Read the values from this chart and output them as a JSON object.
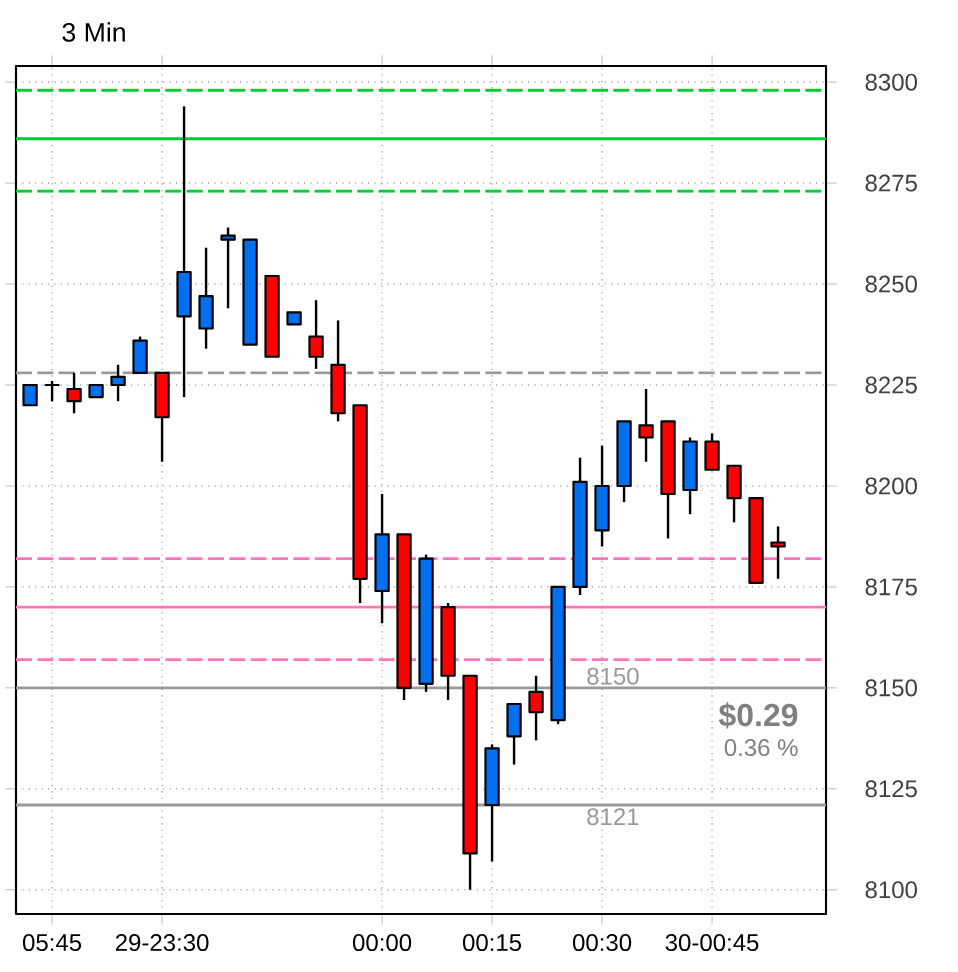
{
  "chart_data": {
    "type": "candlestick",
    "title": "3 Min",
    "categories": [
      null,
      "05:45",
      null,
      null,
      null,
      null,
      "29-23:30",
      null,
      null,
      null,
      null,
      null,
      null,
      null,
      null,
      null,
      "00:00",
      null,
      null,
      null,
      null,
      "00:15",
      null,
      null,
      null,
      null,
      "00:30",
      null,
      null,
      null,
      null,
      "30-00:45",
      null,
      null,
      null
    ],
    "ohlc": [
      [
        8220,
        8225,
        8220,
        8225
      ],
      [
        8225,
        8226,
        8221,
        8225
      ],
      [
        8224,
        8228,
        8218,
        8221
      ],
      [
        8222,
        8225,
        8222,
        8225
      ],
      [
        8225,
        8230,
        8221,
        8227
      ],
      [
        8228,
        8237,
        8228,
        8236
      ],
      [
        8228,
        8228,
        8206,
        8217
      ],
      [
        8242,
        8294,
        8222,
        8253
      ],
      [
        8239,
        8259,
        8234,
        8247
      ],
      [
        8261,
        8264,
        8244,
        8262
      ],
      [
        8235,
        8261,
        8235,
        8261
      ],
      [
        8252,
        8252,
        8232,
        8232
      ],
      [
        8240,
        8243,
        8240,
        8243
      ],
      [
        8237,
        8246,
        8229,
        8232
      ],
      [
        8230,
        8241,
        8216,
        8218
      ],
      [
        8220,
        8220,
        8171,
        8177
      ],
      [
        8174,
        8198,
        8166,
        8188
      ],
      [
        8188,
        8188,
        8147,
        8150
      ],
      [
        8151,
        8183,
        8149,
        8182
      ],
      [
        8170,
        8171,
        8147,
        8153
      ],
      [
        8153,
        8153,
        8100,
        8109
      ],
      [
        8121,
        8136,
        8107,
        8135
      ],
      [
        8138,
        8146,
        8131,
        8146
      ],
      [
        8149,
        8153,
        8137,
        8144
      ],
      [
        8142,
        8175,
        8141,
        8175
      ],
      [
        8175,
        8207,
        8173,
        8201
      ],
      [
        8189,
        8210,
        8185,
        8200
      ],
      [
        8200,
        8216,
        8196,
        8216
      ],
      [
        8215,
        8224,
        8206,
        8212
      ],
      [
        8216,
        8216,
        8187,
        8198
      ],
      [
        8199,
        8212,
        8193,
        8211
      ],
      [
        8211,
        8213,
        8204,
        8204
      ],
      [
        8205,
        8205,
        8191,
        8197
      ],
      [
        8197,
        8197,
        8176,
        8176
      ],
      [
        8186,
        8190,
        8177,
        8185
      ]
    ],
    "colors": [
      "#0070f0",
      "#000000",
      "#ff0000",
      "#0070f0",
      "#0070f0",
      "#0070f0",
      "#ff0000",
      "#0070f0",
      "#0070f0",
      "#0070f0",
      "#0070f0",
      "#ff0000",
      "#0070f0",
      "#ff0000",
      "#ff0000",
      "#ff0000",
      "#0070f0",
      "#ff0000",
      "#0070f0",
      "#ff0000",
      "#ff0000",
      "#0070f0",
      "#0070f0",
      "#ff0000",
      "#0070f0",
      "#0070f0",
      "#0070f0",
      "#0070f0",
      "#ff0000",
      "#ff0000",
      "#0070f0",
      "#ff0000",
      "#ff0000",
      "#ff0000",
      "#ff0000"
    ],
    "ylim": [
      8094,
      8304
    ],
    "yticks": [
      8100,
      8125,
      8150,
      8175,
      8200,
      8225,
      8250,
      8275,
      8300
    ],
    "grid": true,
    "ref_lines": [
      {
        "axis": "y",
        "value": 8298,
        "color": "#00cc33",
        "line_style": "dashed"
      },
      {
        "axis": "y",
        "value": 8286,
        "color": "#00cc33",
        "line_style": "solid"
      },
      {
        "axis": "y",
        "value": 8273,
        "color": "#00cc33",
        "line_style": "dashed"
      },
      {
        "axis": "y",
        "value": 8228,
        "color": "#999999",
        "line_style": "dashed"
      },
      {
        "axis": "y",
        "value": 8182,
        "color": "#ff77bb",
        "line_style": "dashed"
      },
      {
        "axis": "y",
        "value": 8170,
        "color": "#ff77bb",
        "line_style": "solid"
      },
      {
        "axis": "y",
        "value": 8157,
        "color": "#ff77bb",
        "line_style": "dashed"
      },
      {
        "axis": "y",
        "value": 8150,
        "color": "#999999",
        "line_style": "solid",
        "label": "8150"
      },
      {
        "axis": "y",
        "value": 8121,
        "color": "#999999",
        "line_style": "solid",
        "label": "8121"
      }
    ],
    "annotations": [
      "$0.29",
      "0.36 %"
    ]
  }
}
